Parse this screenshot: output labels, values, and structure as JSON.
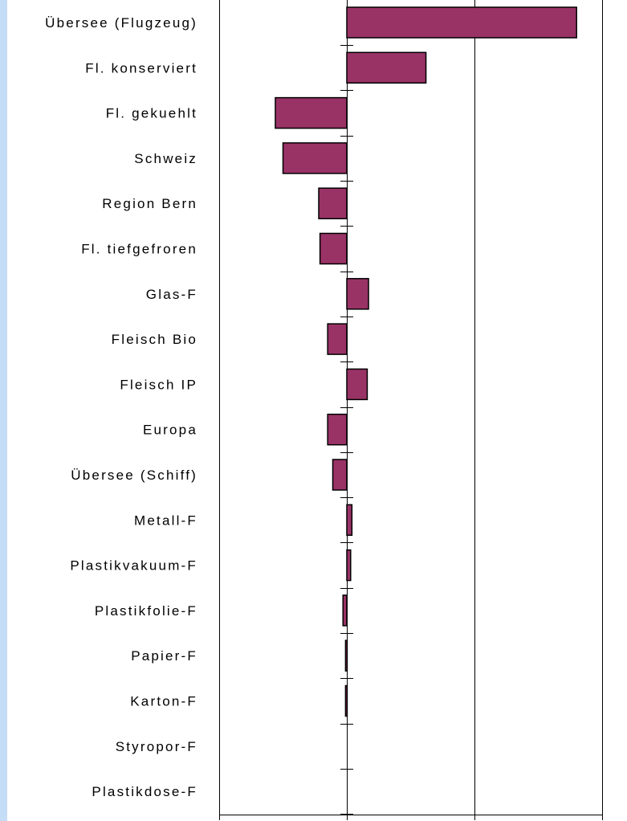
{
  "colors": {
    "bar_fill": "#993366",
    "bar_stroke": "#000000",
    "left_strip": "#c5dcf7",
    "axis": "#000000"
  },
  "chart_data": {
    "type": "bar",
    "orientation": "horizontal",
    "title": "",
    "xlabel": "",
    "ylabel": "",
    "xlim": [
      -1.0,
      2.0
    ],
    "xgrid_values": [
      0,
      1,
      2
    ],
    "tick_labels_shown": false,
    "legend": "none",
    "categories": [
      "Übersee (Flugzeug)",
      "Fl. konserviert",
      "Fl. gekuehlt",
      "Schweiz",
      "Region Bern",
      "Fl. tiefgefroren",
      "Glas-F",
      "Fleisch Bio",
      "Fleisch IP",
      "Europa",
      "Übersee (Schiff)",
      "Metall-F",
      "Plastikvakuum-F",
      "Plastikfolie-F",
      "Papier-F",
      "Karton-F",
      "Styropor-F",
      "Plastikdose-F"
    ],
    "values": [
      1.8,
      0.62,
      -0.56,
      -0.5,
      -0.22,
      -0.21,
      0.17,
      -0.15,
      0.16,
      -0.15,
      -0.11,
      0.04,
      0.03,
      -0.03,
      -0.01,
      -0.01,
      0.0,
      0.0
    ]
  }
}
